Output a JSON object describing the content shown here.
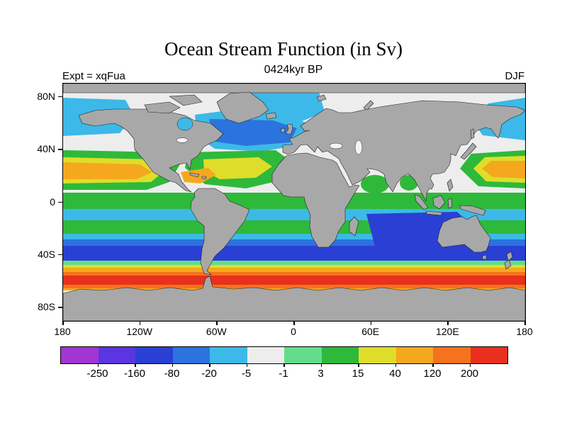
{
  "header": {
    "title": "Ocean Stream Function (in Sv)",
    "subtitle": "0424kyr BP",
    "experiment_label": "Expt = xqFua",
    "season_label": "DJF"
  },
  "chart_data": {
    "type": "heatmap",
    "title": "Ocean Stream Function (in Sv)",
    "subtitle": "0424kyr BP",
    "experiment": "xqFua",
    "season": "DJF",
    "units": "Sv",
    "projection": "equirectangular world map, 180W-180E, 90S-90N",
    "land_color": "#a8a8a8",
    "x_axis": {
      "ticks": [
        {
          "label": "180",
          "lon": -180
        },
        {
          "label": "120W",
          "lon": -120
        },
        {
          "label": "60W",
          "lon": -60
        },
        {
          "label": "0",
          "lon": 0
        },
        {
          "label": "60E",
          "lon": 60
        },
        {
          "label": "120E",
          "lon": 120
        },
        {
          "label": "180",
          "lon": 180
        }
      ]
    },
    "y_axis": {
      "ticks": [
        {
          "label": "80N",
          "lat": 80
        },
        {
          "label": "40N",
          "lat": 40
        },
        {
          "label": "0",
          "lat": 0
        },
        {
          "label": "40S",
          "lat": -40
        },
        {
          "label": "80S",
          "lat": -80
        }
      ]
    },
    "colorbar": {
      "tick_labels": [
        "-250",
        "-160",
        "-80",
        "-20",
        "-5",
        "-1",
        "3",
        "15",
        "40",
        "120",
        "200"
      ],
      "colors": [
        "#a335d2",
        "#5a35e0",
        "#2a3fd4",
        "#2b73de",
        "#3cb9e8",
        "#ededed",
        "#63dd8a",
        "#2eb93a",
        "#dede2a",
        "#f5a81e",
        "#f4731c",
        "#e8301c"
      ]
    },
    "field_summary": [
      {
        "region": "Antarctic Circumpolar Current belt (45S-65S)",
        "approx_value_sv": "120 to >200 (orange-red band circling globe)"
      },
      {
        "region": "Southern subtropical gyres (15S-45S, all basins)",
        "approx_value_sv": "-20 to -80 (blue/dark blue)"
      },
      {
        "region": "South Indian Ocean interior",
        "approx_value_sv": "-80 (dark blue core)"
      },
      {
        "region": "Band just south of equator (3S-12S)",
        "approx_value_sv": "-5 to -1 (cyan)"
      },
      {
        "region": "Equatorial band",
        "approx_value_sv": "3 to 15 (green)"
      },
      {
        "region": "North Pacific subtropical gyre (10N-35N)",
        "approx_value_sv": "40 to 200 (green-yellow-orange)"
      },
      {
        "region": "North Atlantic subtropical gyre / Caribbean",
        "approx_value_sv": "15 to 120 (green-yellow-orange)"
      },
      {
        "region": "North Atlantic subpolar gyre (45N-65N)",
        "approx_value_sv": "-5 to -20 (cyan/blue)"
      },
      {
        "region": "Arctic and marginal seas",
        "approx_value_sv": "-1 to -5 (pale/cyan)"
      }
    ]
  }
}
